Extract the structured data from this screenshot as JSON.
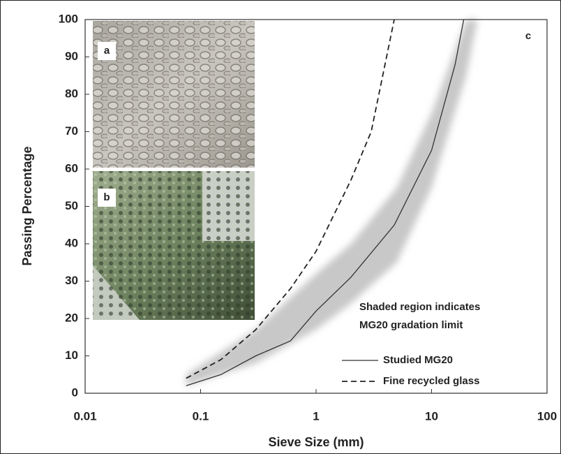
{
  "chart_data": {
    "type": "line",
    "xlabel": "Sieve Size (mm)",
    "ylabel": "Passing  Percentage",
    "xscale": "log",
    "xlim": [
      0.01,
      100
    ],
    "xticks": [
      0.01,
      0.1,
      1,
      10,
      100
    ],
    "ylim": [
      0,
      100
    ],
    "yticks": [
      0,
      10,
      20,
      30,
      40,
      50,
      60,
      70,
      80,
      90,
      100
    ],
    "grid": false,
    "legend": "lower right",
    "panel_labels": [
      "a",
      "b",
      "c"
    ],
    "annotation": [
      "Shaded region indicates",
      "MG20 gradation limit"
    ],
    "band": {
      "color": "#c8c8c8",
      "x": [
        0.075,
        0.3,
        1,
        2,
        5,
        10,
        20,
        25
      ],
      "lower": [
        2,
        8,
        17,
        24,
        35,
        55,
        85,
        100
      ],
      "upper": [
        5,
        17,
        32,
        40,
        55,
        75,
        100,
        100
      ]
    },
    "series": [
      {
        "name": "Studied MG20",
        "color": "#333333",
        "dash": false,
        "x": [
          0.075,
          0.15,
          0.3,
          0.6,
          1,
          2,
          4.75,
          10,
          16,
          19
        ],
        "values": [
          2,
          5,
          10,
          14,
          22,
          31,
          45,
          65,
          88,
          100
        ]
      },
      {
        "name": "Fine recycled glass",
        "color": "#222222",
        "dash": true,
        "x": [
          0.075,
          0.15,
          0.3,
          0.6,
          1,
          2,
          3,
          4.75
        ],
        "values": [
          4,
          9,
          17,
          28,
          38,
          57,
          70,
          100
        ]
      }
    ]
  }
}
